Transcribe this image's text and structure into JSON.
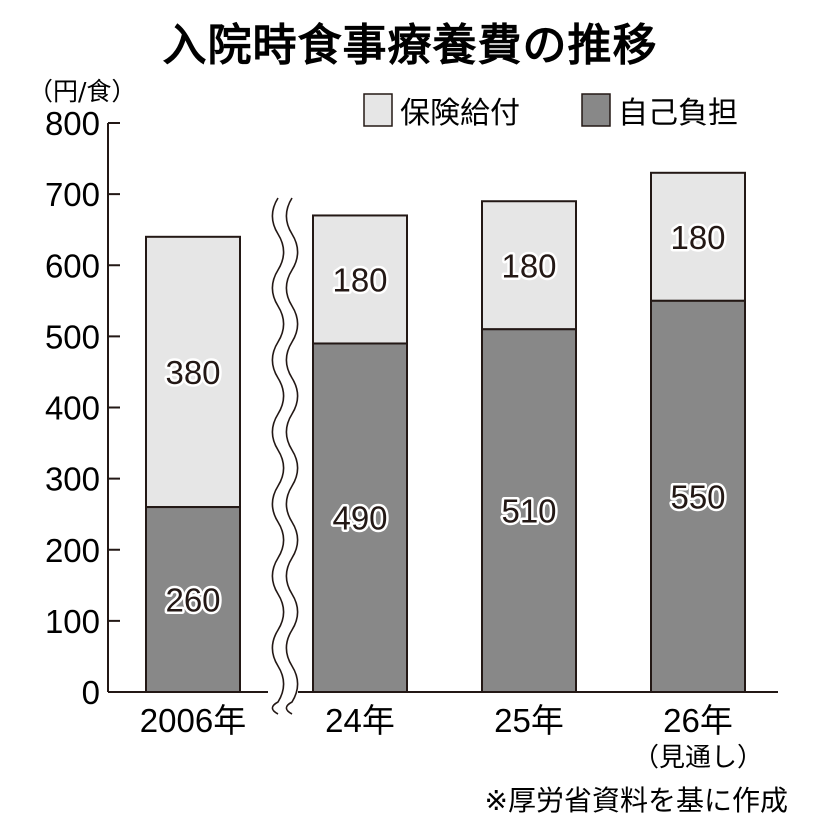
{
  "title": "入院時食事療養費の推移",
  "unit_label": "（円/食）",
  "legend": [
    {
      "label": "保険給付",
      "color": "#e6e6e6"
    },
    {
      "label": "自己負担",
      "color": "#888888"
    }
  ],
  "y_ticks": [
    "0",
    "100",
    "200",
    "300",
    "400",
    "500",
    "600",
    "700",
    "800"
  ],
  "categories": [
    {
      "label": "2006年",
      "sublabel": ""
    },
    {
      "label": "24年",
      "sublabel": ""
    },
    {
      "label": "25年",
      "sublabel": ""
    },
    {
      "label": "26年",
      "sublabel": "（見通し）"
    }
  ],
  "source": "※厚労省資料を基に作成",
  "colors": {
    "insurance": "#e6e6e6",
    "self": "#888888",
    "ink": "#231815"
  },
  "chart_data": {
    "type": "bar",
    "stacked": true,
    "title": "入院時食事療養費の推移",
    "xlabel": "",
    "ylabel": "（円/食）",
    "ylim": [
      0,
      800
    ],
    "y_ticks": [
      0,
      100,
      200,
      300,
      400,
      500,
      600,
      700,
      800
    ],
    "grid": false,
    "legend_position": "top-right",
    "axis_break": "between 2006年 and 24年",
    "categories": [
      "2006年",
      "24年",
      "25年",
      "26年（見通し）"
    ],
    "series": [
      {
        "name": "自己負担",
        "values": [
          260,
          490,
          510,
          550
        ],
        "color": "#888888"
      },
      {
        "name": "保険給付",
        "values": [
          380,
          180,
          180,
          180
        ],
        "color": "#e6e6e6"
      }
    ],
    "totals": [
      640,
      670,
      690,
      730
    ],
    "annotations": [
      "26年（見通し）",
      "※厚労省資料を基に作成"
    ]
  }
}
